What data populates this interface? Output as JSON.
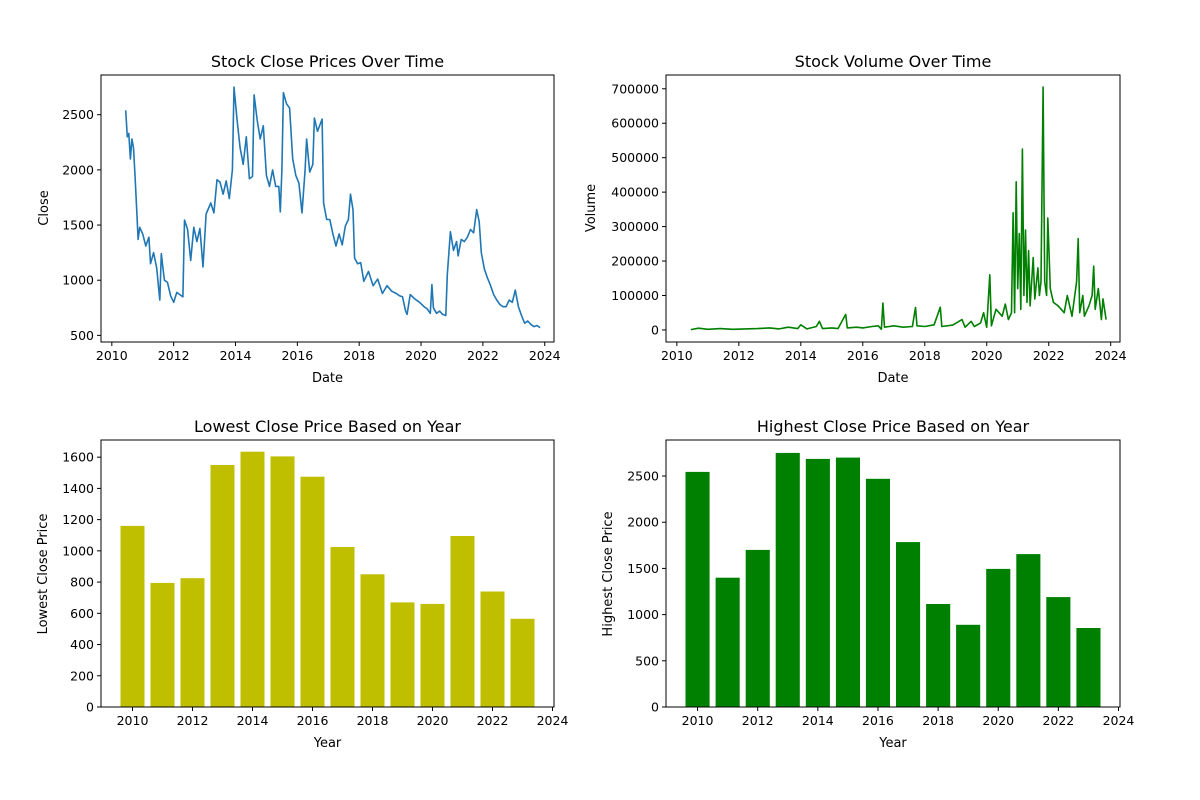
{
  "chart_data": [
    {
      "id": "close_line",
      "type": "line",
      "title": "Stock Close Prices Over Time",
      "xlabel": "Date",
      "ylabel": "Close",
      "xlim": [
        2009.65,
        2024.3
      ],
      "ylim": [
        440,
        2860
      ],
      "xticks": [
        2010,
        2012,
        2014,
        2016,
        2018,
        2020,
        2022,
        2024
      ],
      "yticks": [
        500,
        1000,
        1500,
        2000,
        2500
      ],
      "color": "#1f77b4",
      "grid": false,
      "points": [
        [
          2010.45,
          2540
        ],
        [
          2010.5,
          2300
        ],
        [
          2010.55,
          2330
        ],
        [
          2010.6,
          2100
        ],
        [
          2010.65,
          2280
        ],
        [
          2010.7,
          2200
        ],
        [
          2010.75,
          1950
        ],
        [
          2010.8,
          1660
        ],
        [
          2010.85,
          1370
        ],
        [
          2010.9,
          1480
        ],
        [
          2011.0,
          1420
        ],
        [
          2011.1,
          1310
        ],
        [
          2011.2,
          1390
        ],
        [
          2011.25,
          1150
        ],
        [
          2011.35,
          1250
        ],
        [
          2011.45,
          1110
        ],
        [
          2011.55,
          820
        ],
        [
          2011.6,
          1240
        ],
        [
          2011.7,
          1000
        ],
        [
          2011.8,
          980
        ],
        [
          2011.9,
          860
        ],
        [
          2012.0,
          800
        ],
        [
          2012.1,
          890
        ],
        [
          2012.2,
          870
        ],
        [
          2012.3,
          850
        ],
        [
          2012.35,
          1545
        ],
        [
          2012.45,
          1460
        ],
        [
          2012.55,
          1180
        ],
        [
          2012.65,
          1480
        ],
        [
          2012.75,
          1350
        ],
        [
          2012.85,
          1470
        ],
        [
          2012.95,
          1120
        ],
        [
          2013.05,
          1600
        ],
        [
          2013.2,
          1700
        ],
        [
          2013.3,
          1610
        ],
        [
          2013.4,
          1910
        ],
        [
          2013.5,
          1890
        ],
        [
          2013.6,
          1780
        ],
        [
          2013.7,
          1900
        ],
        [
          2013.8,
          1740
        ],
        [
          2013.9,
          2000
        ],
        [
          2013.95,
          2750
        ],
        [
          2014.05,
          2450
        ],
        [
          2014.15,
          2200
        ],
        [
          2014.25,
          2050
        ],
        [
          2014.35,
          2300
        ],
        [
          2014.45,
          1920
        ],
        [
          2014.55,
          1940
        ],
        [
          2014.6,
          2680
        ],
        [
          2014.7,
          2450
        ],
        [
          2014.8,
          2280
        ],
        [
          2014.9,
          2400
        ],
        [
          2015.0,
          1950
        ],
        [
          2015.1,
          1850
        ],
        [
          2015.2,
          2000
        ],
        [
          2015.3,
          1850
        ],
        [
          2015.4,
          1850
        ],
        [
          2015.45,
          1620
        ],
        [
          2015.5,
          2000
        ],
        [
          2015.55,
          2700
        ],
        [
          2015.65,
          2600
        ],
        [
          2015.75,
          2560
        ],
        [
          2015.85,
          2100
        ],
        [
          2015.95,
          1950
        ],
        [
          2016.05,
          1880
        ],
        [
          2016.15,
          1610
        ],
        [
          2016.25,
          2000
        ],
        [
          2016.3,
          2280
        ],
        [
          2016.4,
          1980
        ],
        [
          2016.5,
          2050
        ],
        [
          2016.55,
          2470
        ],
        [
          2016.65,
          2350
        ],
        [
          2016.8,
          2460
        ],
        [
          2016.85,
          1700
        ],
        [
          2016.95,
          1550
        ],
        [
          2017.05,
          1550
        ],
        [
          2017.15,
          1420
        ],
        [
          2017.25,
          1310
        ],
        [
          2017.35,
          1420
        ],
        [
          2017.45,
          1320
        ],
        [
          2017.55,
          1490
        ],
        [
          2017.65,
          1550
        ],
        [
          2017.72,
          1780
        ],
        [
          2017.8,
          1640
        ],
        [
          2017.85,
          1200
        ],
        [
          2017.95,
          1150
        ],
        [
          2018.05,
          1160
        ],
        [
          2018.15,
          990
        ],
        [
          2018.3,
          1080
        ],
        [
          2018.45,
          950
        ],
        [
          2018.6,
          1010
        ],
        [
          2018.75,
          880
        ],
        [
          2018.9,
          950
        ],
        [
          2019.05,
          900
        ],
        [
          2019.2,
          880
        ],
        [
          2019.3,
          860
        ],
        [
          2019.4,
          850
        ],
        [
          2019.5,
          720
        ],
        [
          2019.55,
          690
        ],
        [
          2019.65,
          870
        ],
        [
          2019.8,
          830
        ],
        [
          2019.95,
          800
        ],
        [
          2020.1,
          760
        ],
        [
          2020.2,
          740
        ],
        [
          2020.3,
          700
        ],
        [
          2020.35,
          960
        ],
        [
          2020.4,
          750
        ],
        [
          2020.5,
          700
        ],
        [
          2020.6,
          720
        ],
        [
          2020.7,
          690
        ],
        [
          2020.8,
          680
        ],
        [
          2020.85,
          1050
        ],
        [
          2020.95,
          1440
        ],
        [
          2021.05,
          1270
        ],
        [
          2021.15,
          1350
        ],
        [
          2021.2,
          1220
        ],
        [
          2021.3,
          1370
        ],
        [
          2021.4,
          1350
        ],
        [
          2021.5,
          1390
        ],
        [
          2021.6,
          1460
        ],
        [
          2021.7,
          1430
        ],
        [
          2021.8,
          1640
        ],
        [
          2021.88,
          1530
        ],
        [
          2021.95,
          1250
        ],
        [
          2022.05,
          1100
        ],
        [
          2022.15,
          1020
        ],
        [
          2022.25,
          950
        ],
        [
          2022.35,
          870
        ],
        [
          2022.45,
          820
        ],
        [
          2022.55,
          780
        ],
        [
          2022.65,
          760
        ],
        [
          2022.75,
          760
        ],
        [
          2022.85,
          820
        ],
        [
          2022.95,
          800
        ],
        [
          2023.05,
          910
        ],
        [
          2023.15,
          760
        ],
        [
          2023.25,
          680
        ],
        [
          2023.35,
          610
        ],
        [
          2023.45,
          630
        ],
        [
          2023.55,
          600
        ],
        [
          2023.65,
          580
        ],
        [
          2023.75,
          590
        ],
        [
          2023.85,
          570
        ]
      ]
    },
    {
      "id": "volume_line",
      "type": "line",
      "title": "Stock Volume Over Time",
      "xlabel": "Date",
      "ylabel": "Volume",
      "xlim": [
        2009.65,
        2024.3
      ],
      "ylim": [
        -35000,
        740000
      ],
      "xticks": [
        2010,
        2012,
        2014,
        2016,
        2018,
        2020,
        2022,
        2024
      ],
      "yticks": [
        0,
        100000,
        200000,
        300000,
        400000,
        500000,
        600000,
        700000
      ],
      "color": "#008000",
      "grid": false,
      "points": [
        [
          2010.45,
          1000
        ],
        [
          2010.7,
          5000
        ],
        [
          2011.0,
          2000
        ],
        [
          2011.4,
          4000
        ],
        [
          2011.8,
          2000
        ],
        [
          2012.2,
          3000
        ],
        [
          2012.6,
          4000
        ],
        [
          2013.0,
          6000
        ],
        [
          2013.3,
          3000
        ],
        [
          2013.6,
          8000
        ],
        [
          2013.9,
          4000
        ],
        [
          2014.0,
          15000
        ],
        [
          2014.2,
          3000
        ],
        [
          2014.5,
          10000
        ],
        [
          2014.6,
          25000
        ],
        [
          2014.7,
          4000
        ],
        [
          2015.0,
          6000
        ],
        [
          2015.2,
          4000
        ],
        [
          2015.45,
          45000
        ],
        [
          2015.5,
          6000
        ],
        [
          2015.8,
          8000
        ],
        [
          2016.0,
          6000
        ],
        [
          2016.3,
          10000
        ],
        [
          2016.5,
          12000
        ],
        [
          2016.6,
          2000
        ],
        [
          2016.65,
          78000
        ],
        [
          2016.7,
          8000
        ],
        [
          2017.0,
          12000
        ],
        [
          2017.3,
          8000
        ],
        [
          2017.6,
          10000
        ],
        [
          2017.7,
          65000
        ],
        [
          2017.75,
          12000
        ],
        [
          2018.0,
          10000
        ],
        [
          2018.3,
          15000
        ],
        [
          2018.5,
          66000
        ],
        [
          2018.55,
          10000
        ],
        [
          2018.9,
          14000
        ],
        [
          2019.2,
          30000
        ],
        [
          2019.3,
          8000
        ],
        [
          2019.5,
          25000
        ],
        [
          2019.6,
          10000
        ],
        [
          2019.8,
          20000
        ],
        [
          2019.9,
          50000
        ],
        [
          2020.0,
          8000
        ],
        [
          2020.1,
          160000
        ],
        [
          2020.15,
          12000
        ],
        [
          2020.3,
          60000
        ],
        [
          2020.5,
          40000
        ],
        [
          2020.6,
          75000
        ],
        [
          2020.7,
          30000
        ],
        [
          2020.8,
          50000
        ],
        [
          2020.85,
          340000
        ],
        [
          2020.9,
          50000
        ],
        [
          2020.95,
          430000
        ],
        [
          2021.0,
          120000
        ],
        [
          2021.05,
          280000
        ],
        [
          2021.1,
          60000
        ],
        [
          2021.15,
          525000
        ],
        [
          2021.2,
          100000
        ],
        [
          2021.25,
          290000
        ],
        [
          2021.3,
          80000
        ],
        [
          2021.35,
          230000
        ],
        [
          2021.4,
          70000
        ],
        [
          2021.5,
          210000
        ],
        [
          2021.55,
          90000
        ],
        [
          2021.65,
          180000
        ],
        [
          2021.7,
          100000
        ],
        [
          2021.75,
          140000
        ],
        [
          2021.82,
          705000
        ],
        [
          2021.87,
          140000
        ],
        [
          2021.93,
          100000
        ],
        [
          2021.97,
          325000
        ],
        [
          2022.05,
          120000
        ],
        [
          2022.15,
          80000
        ],
        [
          2022.3,
          70000
        ],
        [
          2022.5,
          50000
        ],
        [
          2022.6,
          100000
        ],
        [
          2022.75,
          40000
        ],
        [
          2022.9,
          140000
        ],
        [
          2022.95,
          265000
        ],
        [
          2023.0,
          50000
        ],
        [
          2023.1,
          100000
        ],
        [
          2023.15,
          40000
        ],
        [
          2023.3,
          70000
        ],
        [
          2023.4,
          100000
        ],
        [
          2023.45,
          185000
        ],
        [
          2023.5,
          60000
        ],
        [
          2023.6,
          120000
        ],
        [
          2023.7,
          30000
        ],
        [
          2023.75,
          90000
        ],
        [
          2023.85,
          30000
        ]
      ]
    },
    {
      "id": "lowest_bar",
      "type": "bar",
      "title": "Lowest Close Price Based on Year",
      "xlabel": "Year",
      "ylabel": "Lowest Close Price",
      "xlim": [
        2008.95,
        2024.05
      ],
      "ylim": [
        0,
        1710
      ],
      "xticks": [
        2010,
        2012,
        2014,
        2016,
        2018,
        2020,
        2022,
        2024
      ],
      "yticks": [
        0,
        200,
        400,
        600,
        800,
        1000,
        1200,
        1400,
        1600
      ],
      "color": "#bfbf00",
      "bar_width": 0.8,
      "grid": false,
      "categories": [
        2010,
        2011,
        2012,
        2013,
        2014,
        2015,
        2016,
        2017,
        2018,
        2019,
        2020,
        2021,
        2022,
        2023
      ],
      "values": [
        1160,
        795,
        825,
        1550,
        1635,
        1605,
        1475,
        1025,
        850,
        670,
        660,
        1095,
        740,
        565
      ]
    },
    {
      "id": "highest_bar",
      "type": "bar",
      "title": "Highest Close Price Based on Year",
      "xlabel": "Year",
      "ylabel": "Highest Close Price",
      "xlim": [
        2008.95,
        2024.05
      ],
      "ylim": [
        0,
        2890
      ],
      "xticks": [
        2010,
        2012,
        2014,
        2016,
        2018,
        2020,
        2022,
        2024
      ],
      "yticks": [
        0,
        500,
        1000,
        1500,
        2000,
        2500
      ],
      "color": "#008000",
      "bar_width": 0.8,
      "grid": false,
      "categories": [
        2010,
        2011,
        2012,
        2013,
        2014,
        2015,
        2016,
        2017,
        2018,
        2019,
        2020,
        2021,
        2022,
        2023
      ],
      "values": [
        2545,
        1400,
        1700,
        2750,
        2685,
        2700,
        2470,
        1785,
        1115,
        890,
        1495,
        1655,
        1190,
        855
      ]
    }
  ]
}
